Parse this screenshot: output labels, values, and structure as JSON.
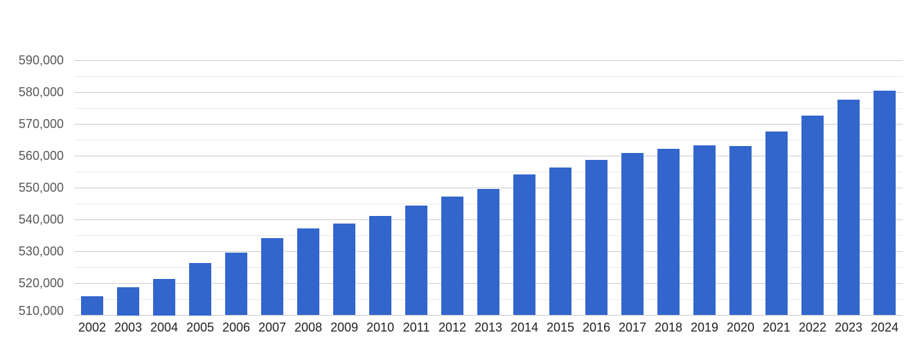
{
  "chart_data": {
    "type": "bar",
    "title": "",
    "xlabel": "",
    "ylabel": "",
    "categories": [
      "2002",
      "2003",
      "2004",
      "2005",
      "2006",
      "2007",
      "2008",
      "2009",
      "2010",
      "2011",
      "2012",
      "2013",
      "2014",
      "2015",
      "2016",
      "2017",
      "2018",
      "2019",
      "2020",
      "2021",
      "2022",
      "2023",
      "2024"
    ],
    "values": [
      515900,
      518900,
      521400,
      526400,
      529700,
      534300,
      537300,
      538700,
      541200,
      544500,
      547200,
      549700,
      554200,
      556400,
      558800,
      561000,
      562300,
      563200,
      563100,
      567600,
      572600,
      577700,
      580400
    ],
    "ylim": [
      510000,
      590000
    ],
    "y_major_ticks": {
      "values": [
        510000,
        520000,
        530000,
        540000,
        550000,
        560000,
        570000,
        580000,
        590000
      ],
      "labels": [
        "510,000",
        "520,000",
        "530,000",
        "540,000",
        "550,000",
        "560,000",
        "570,000",
        "580,000",
        "590,000"
      ]
    },
    "y_minor_step": 5000,
    "grid": true,
    "legend": "none",
    "colors": {
      "bar": "#3366cc",
      "grid_major": "#cccccc",
      "grid_minor": "#ebebeb",
      "y_label": "#575757",
      "x_label": "#222222",
      "background": "#ffffff"
    }
  }
}
